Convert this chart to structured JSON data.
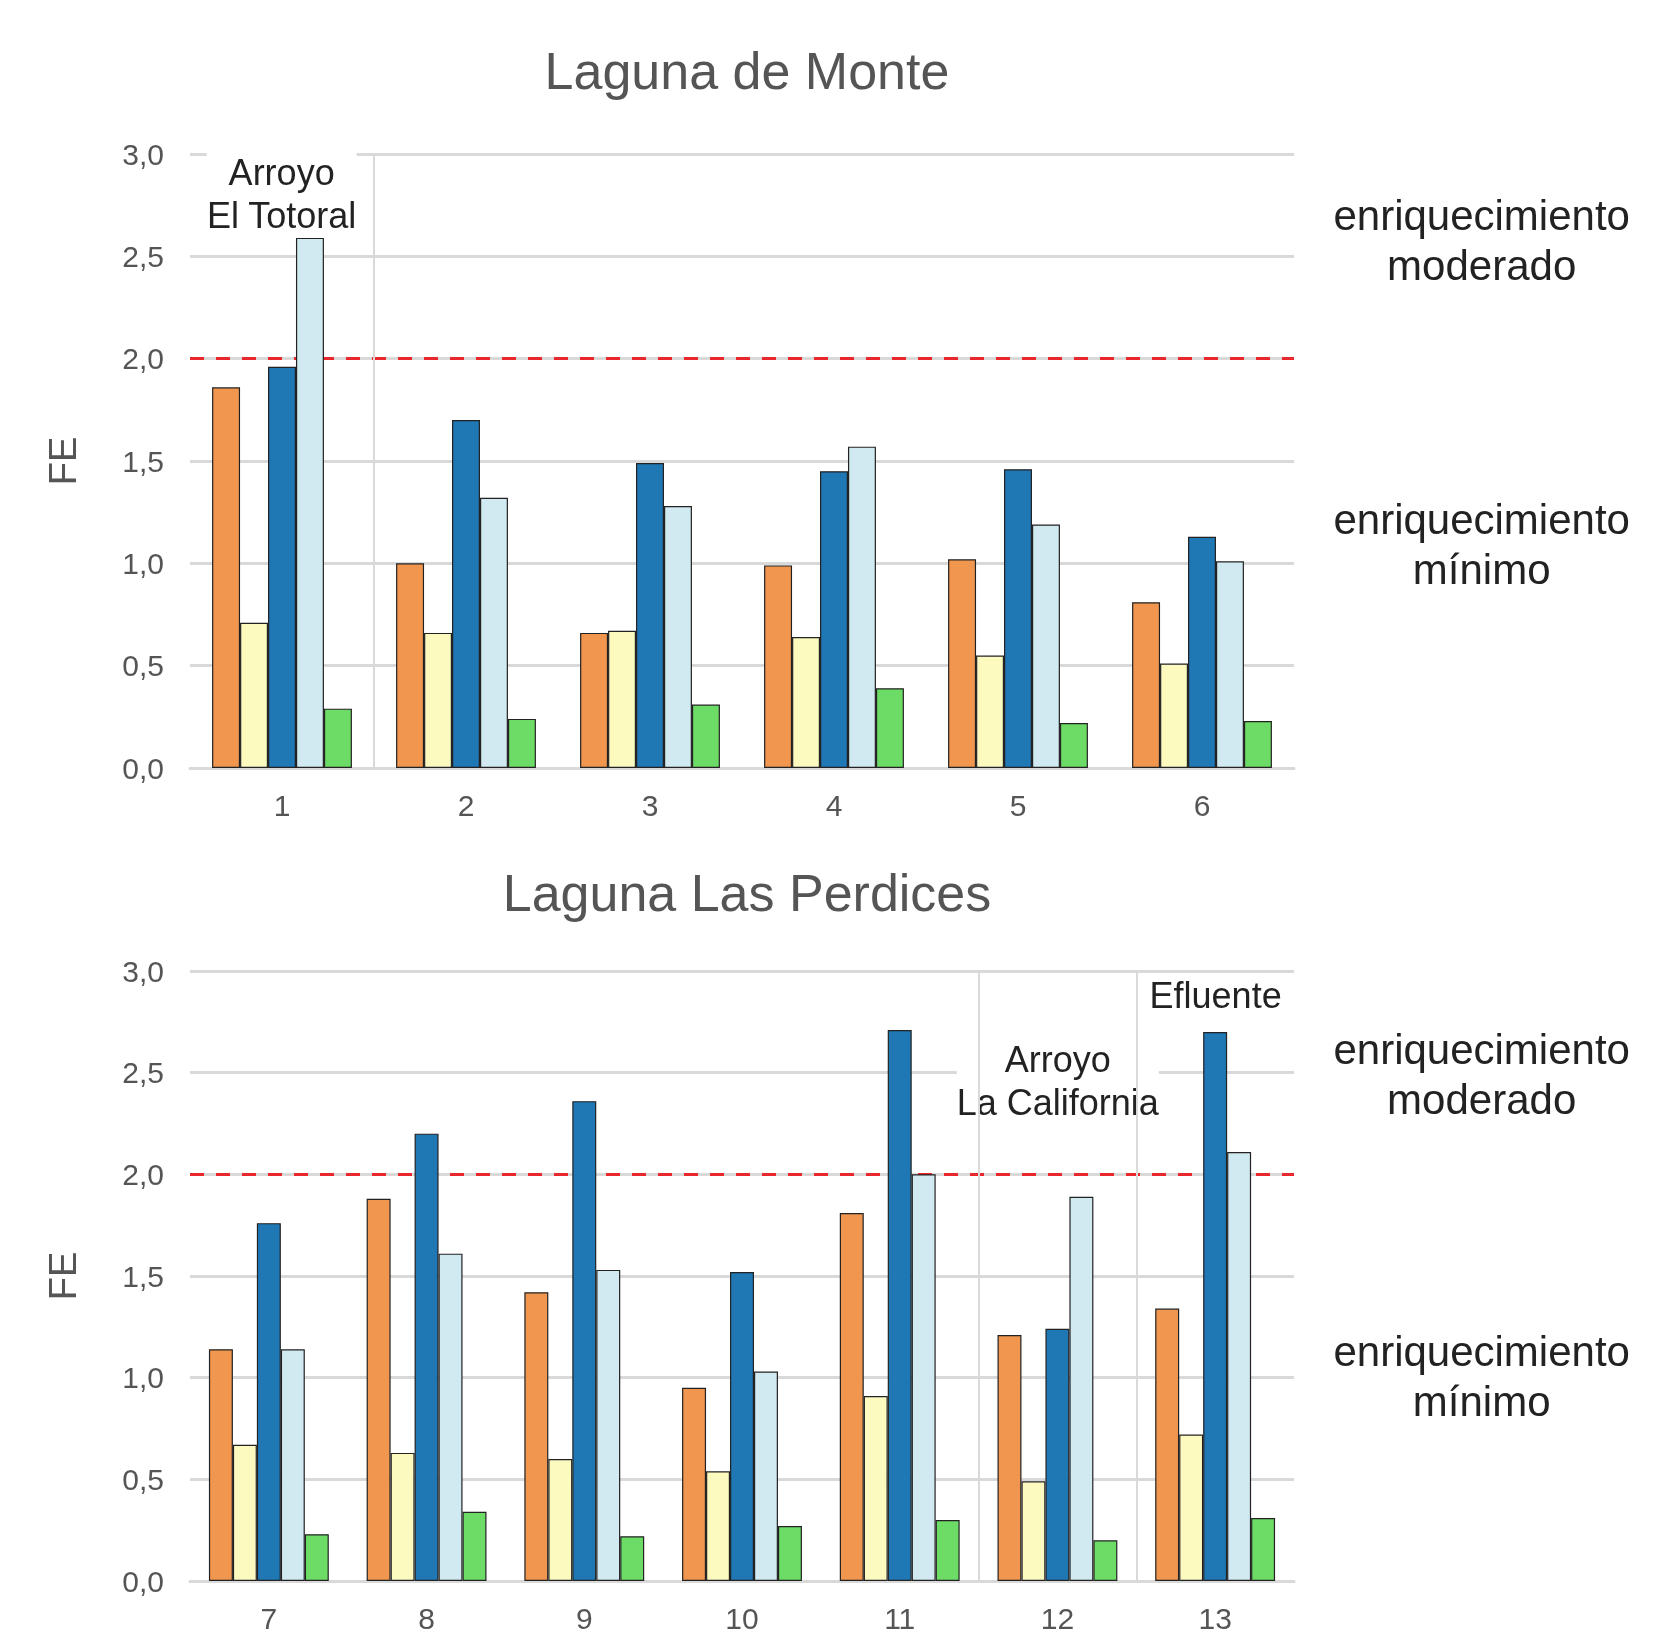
{
  "chart_data": [
    {
      "type": "bar",
      "title": "Laguna de Monte",
      "ylabel": "FE",
      "x": [
        1,
        2,
        3,
        4,
        5,
        6
      ],
      "series": [
        {
          "color": "#f0964f",
          "values": [
            1.86,
            1.0,
            0.66,
            0.99,
            1.02,
            0.81
          ]
        },
        {
          "color": "#fdfac0",
          "values": [
            0.71,
            0.66,
            0.67,
            0.64,
            0.55,
            0.51
          ]
        },
        {
          "color": "#1f77b4",
          "values": [
            1.96,
            1.7,
            1.49,
            1.45,
            1.46,
            1.13
          ]
        },
        {
          "color": "#d1e9f0",
          "values": [
            2.59,
            1.32,
            1.28,
            1.57,
            1.19,
            1.01
          ]
        },
        {
          "color": "#6ddc66",
          "values": [
            0.29,
            0.24,
            0.31,
            0.39,
            0.22,
            0.23
          ]
        }
      ],
      "xlim": [
        0.5,
        6.5
      ],
      "xticks": [
        1,
        2,
        3,
        4,
        5,
        6
      ],
      "ylim": [
        0,
        3
      ],
      "yticks": [
        {
          "value": 0,
          "label": "0,0"
        },
        {
          "value": 0.5,
          "label": "0,5"
        },
        {
          "value": 1,
          "label": "1,0"
        },
        {
          "value": 1.5,
          "label": "1,5"
        },
        {
          "value": 2,
          "label": "2,0"
        },
        {
          "value": 2.5,
          "label": "2,5"
        },
        {
          "value": 3,
          "label": "3,0"
        }
      ],
      "grid": "y",
      "ref_lines": [
        {
          "axis": "y",
          "value": 2,
          "color": "#e8262c",
          "line_style": "dashed"
        },
        {
          "axis": "x",
          "value": 1.5,
          "color": "#d9d9d9",
          "line_style": "solid"
        }
      ],
      "annotations": [
        "Arroyo\nEl Totoral",
        "enriquecimiento\nmoderado",
        "enriquecimiento\nmínimo"
      ]
    },
    {
      "type": "bar",
      "title": "Laguna Las Perdices",
      "ylabel": "FE",
      "x": [
        7,
        8,
        9,
        10,
        11,
        12,
        13
      ],
      "series": [
        {
          "color": "#f0964f",
          "values": [
            1.14,
            1.88,
            1.42,
            0.95,
            1.81,
            1.21,
            1.34
          ]
        },
        {
          "color": "#fdfac0",
          "values": [
            0.67,
            0.63,
            0.6,
            0.54,
            0.91,
            0.49,
            0.72
          ]
        },
        {
          "color": "#1f77b4",
          "values": [
            1.76,
            2.2,
            2.36,
            1.52,
            2.71,
            1.24,
            2.7
          ]
        },
        {
          "color": "#d1e9f0",
          "values": [
            1.14,
            1.61,
            1.53,
            1.03,
            2.0,
            1.89,
            2.11
          ]
        },
        {
          "color": "#6ddc66",
          "values": [
            0.23,
            0.34,
            0.22,
            0.27,
            0.3,
            0.2,
            0.31
          ]
        }
      ],
      "xlim": [
        6.5,
        13.5
      ],
      "xticks": [
        7,
        8,
        9,
        10,
        11,
        12,
        13
      ],
      "ylim": [
        0,
        3
      ],
      "yticks": [
        {
          "value": 0,
          "label": "0,0"
        },
        {
          "value": 0.5,
          "label": "0,5"
        },
        {
          "value": 1,
          "label": "1,0"
        },
        {
          "value": 1.5,
          "label": "1,5"
        },
        {
          "value": 2,
          "label": "2,0"
        },
        {
          "value": 2.5,
          "label": "2,5"
        },
        {
          "value": 3,
          "label": "3,0"
        }
      ],
      "grid": "y",
      "ref_lines": [
        {
          "axis": "y",
          "value": 2,
          "color": "#e8262c",
          "line_style": "dashed"
        },
        {
          "axis": "x",
          "value": 11.5,
          "color": "#d9d9d9",
          "line_style": "solid"
        },
        {
          "axis": "x",
          "value": 12.5,
          "color": "#d9d9d9",
          "line_style": "solid"
        }
      ],
      "annotations": [
        "Arroyo\nLa California",
        "Efluente",
        "enriquecimiento\nmoderado",
        "enriquecimiento\nmínimo"
      ]
    }
  ]
}
